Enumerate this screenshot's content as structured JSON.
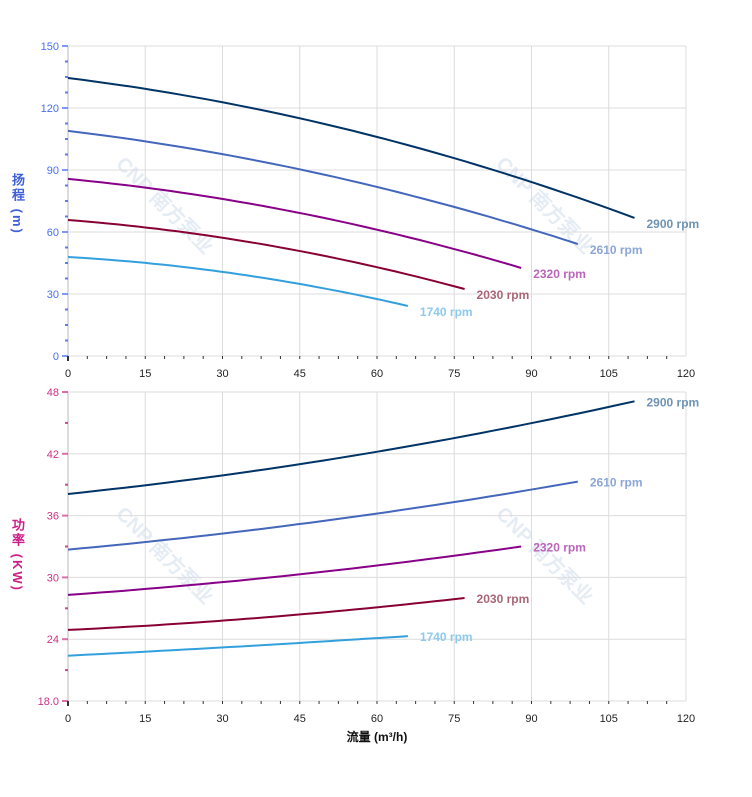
{
  "watermark": "CNP 南方泵业",
  "chart_data": [
    {
      "type": "line",
      "ylabel": "扬程 (m)",
      "ylabel_color": "#3f5fd8",
      "tick_color": "#4a6ff0",
      "xlim": [
        0,
        120
      ],
      "ylim": [
        0,
        150
      ],
      "x_ticks": [
        0,
        15,
        30,
        45,
        60,
        75,
        90,
        105,
        120
      ],
      "y_ticks": [
        0,
        30,
        60,
        90,
        120,
        150
      ],
      "y_tick_labels": [
        "0",
        "30",
        "60",
        "90",
        "120",
        "150"
      ],
      "y_minor_step": 7.5,
      "grid": true,
      "series": [
        {
          "name": "2900 rpm",
          "color": "#003366",
          "label_color": "#6f93b3",
          "points": [
            [
              0,
              134.5
            ],
            [
              60,
              106
            ],
            [
              110,
              66.8
            ]
          ]
        },
        {
          "name": "2610 rpm",
          "color": "#4466bb",
          "label_color": "#8ca6d8",
          "points": [
            [
              0,
              108.9
            ],
            [
              60,
              81.8
            ],
            [
              99,
              54.2
            ]
          ]
        },
        {
          "name": "2320 rpm",
          "color": "#880088",
          "label_color": "#bb66bb",
          "points": [
            [
              0,
              85.7
            ],
            [
              45,
              69.2
            ],
            [
              88,
              42.6
            ]
          ]
        },
        {
          "name": "2030 rpm",
          "color": "#880033",
          "label_color": "#aa6677",
          "points": [
            [
              0,
              65.8
            ],
            [
              45,
              50.8
            ],
            [
              77,
              32.4
            ]
          ]
        },
        {
          "name": "1740 rpm",
          "color": "#33a0dd",
          "label_color": "#8ccaee",
          "points": [
            [
              0,
              47.9
            ],
            [
              30,
              40.7
            ],
            [
              66,
              24.2
            ]
          ]
        }
      ]
    },
    {
      "type": "line",
      "ylabel": "功率 (KW)",
      "ylabel_color": "#cc1f88",
      "tick_color": "#cc3388",
      "xlabel": "流量 (m³/h)",
      "xlim": [
        0,
        120
      ],
      "ylim": [
        18,
        48
      ],
      "x_ticks": [
        0,
        15,
        30,
        45,
        60,
        75,
        90,
        105,
        120
      ],
      "y_ticks": [
        18,
        24,
        30,
        36,
        42,
        48
      ],
      "y_tick_labels": [
        "18.0",
        "24",
        "30",
        "36",
        "42",
        "48"
      ],
      "y_minor_step": 3,
      "grid": true,
      "series": [
        {
          "name": "2900 rpm",
          "color": "#003366",
          "label_color": "#6f93b3",
          "points": [
            [
              0,
              38.1
            ],
            [
              60,
              42.2
            ],
            [
              110,
              47.1
            ]
          ]
        },
        {
          "name": "2610 rpm",
          "color": "#4466bb",
          "label_color": "#8ca6d8",
          "points": [
            [
              0,
              32.7
            ],
            [
              60,
              36.2
            ],
            [
              99,
              39.3
            ]
          ]
        },
        {
          "name": "2320 rpm",
          "color": "#880088",
          "label_color": "#bb66bb",
          "points": [
            [
              0,
              28.3
            ],
            [
              45,
              30.3
            ],
            [
              88,
              33.0
            ]
          ]
        },
        {
          "name": "2030 rpm",
          "color": "#880033",
          "label_color": "#aa6677",
          "points": [
            [
              0,
              24.9
            ],
            [
              45,
              26.4
            ],
            [
              77,
              28.0
            ]
          ]
        },
        {
          "name": "1740 rpm",
          "color": "#33a0dd",
          "label_color": "#8ccaee",
          "points": [
            [
              0,
              22.4
            ],
            [
              30,
              23.2
            ],
            [
              66,
              24.3
            ]
          ]
        }
      ]
    }
  ]
}
